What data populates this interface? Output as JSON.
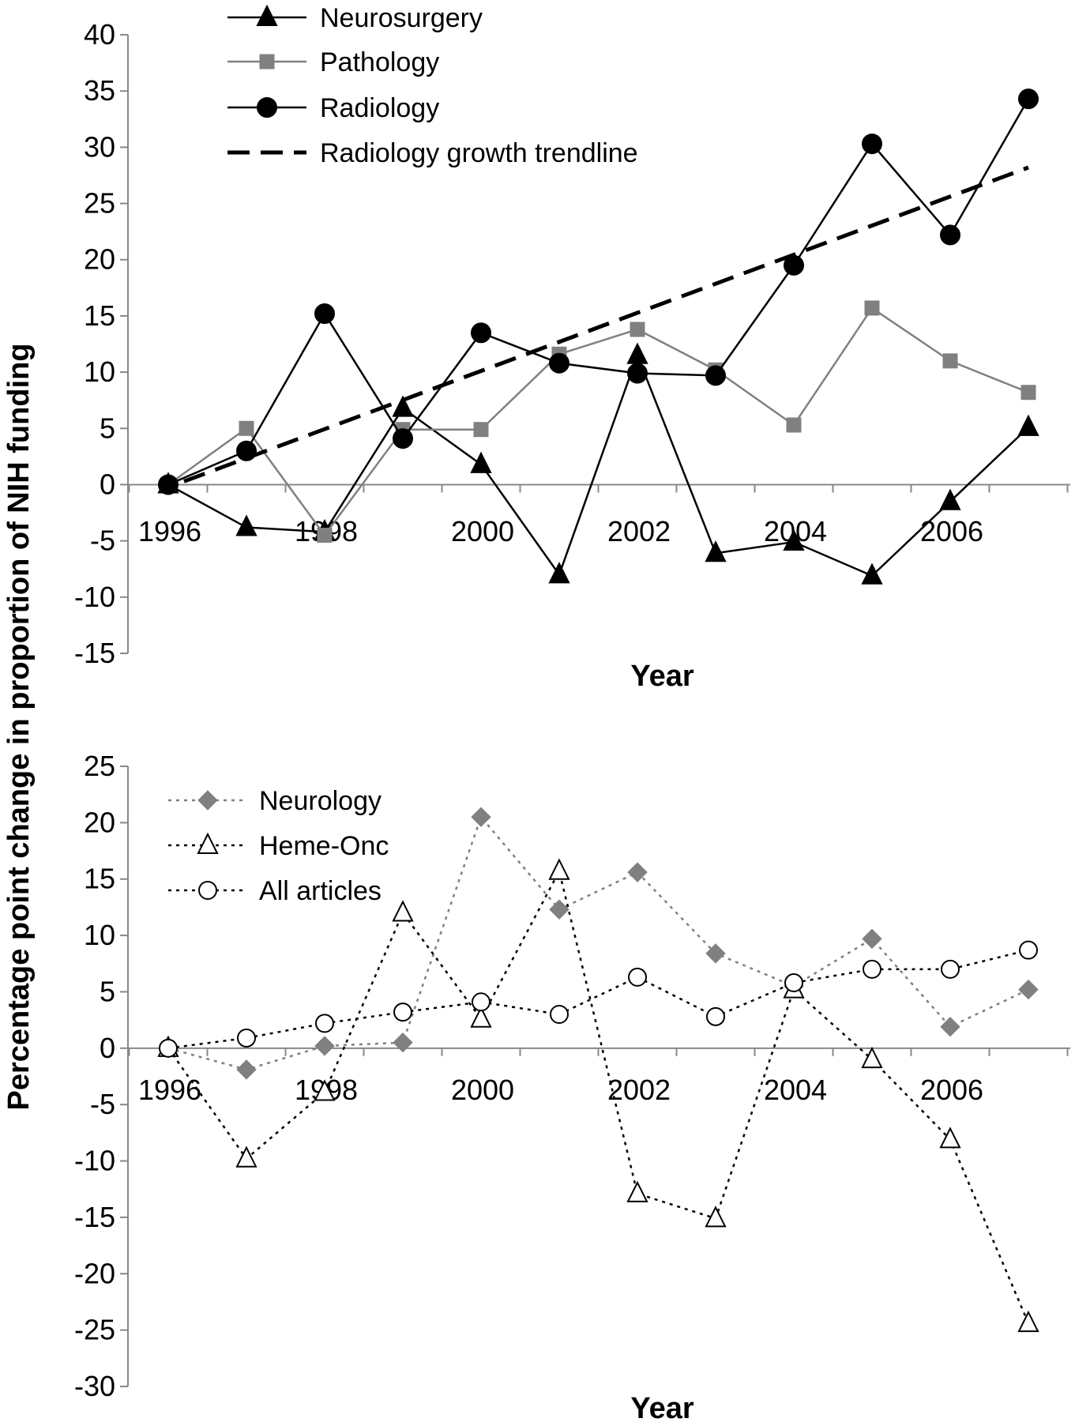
{
  "shared_ylabel": "Percentage point change in proportion of NIH funding",
  "chart_data": [
    {
      "type": "line",
      "xlabel": "Year",
      "ylabel": "Percentage point change in proportion of NIH funding",
      "x": [
        1996,
        1997,
        1998,
        1999,
        2000,
        2001,
        2002,
        2003,
        2004,
        2005,
        2006,
        2007
      ],
      "xticks": [
        "1996",
        "1998",
        "2000",
        "2002",
        "2004",
        "2006"
      ],
      "ylim": [
        -15,
        40
      ],
      "yticks": [
        "40",
        "35",
        "30",
        "25",
        "20",
        "15",
        "10",
        "5",
        "0",
        "-5",
        "-10",
        "-15"
      ],
      "legend_position": "top-left",
      "series": [
        {
          "name": "Neurosurgery",
          "color": "#000000",
          "marker": "triangle-filled",
          "line": "solid",
          "values": [
            0,
            -3.8,
            -4.2,
            6.8,
            1.8,
            -8,
            11.5,
            -6.1,
            -5.1,
            -8.1,
            -1.5,
            5.1
          ]
        },
        {
          "name": "Pathology",
          "color": "#808080",
          "marker": "square-filled",
          "line": "solid",
          "values": [
            0,
            5,
            -4.5,
            4.9,
            4.9,
            11.6,
            13.8,
            10.2,
            5.3,
            15.7,
            11,
            8.2
          ]
        },
        {
          "name": "Radiology",
          "color": "#000000",
          "marker": "circle-filled",
          "line": "solid",
          "values": [
            0,
            3,
            15.2,
            4.1,
            13.5,
            10.8,
            9.9,
            9.7,
            19.5,
            30.3,
            22.2,
            34.3
          ]
        },
        {
          "name": "Radiology growth trendline",
          "color": "#000000",
          "marker": "none",
          "line": "dashed",
          "values": [
            0.5,
            3,
            5.5,
            8.1,
            10.6,
            13.1,
            15.6,
            18.1,
            20.6,
            23.2,
            25.7,
            28.2
          ]
        }
      ]
    },
    {
      "type": "line",
      "xlabel": "Year",
      "ylabel": "Percentage point change in proportion of NIH funding",
      "x": [
        1996,
        1997,
        1998,
        1999,
        2000,
        2001,
        2002,
        2003,
        2004,
        2005,
        2006,
        2007
      ],
      "xticks": [
        "1996",
        "1998",
        "2000",
        "2002",
        "2004",
        "2006"
      ],
      "ylim": [
        -30,
        25
      ],
      "yticks": [
        "25",
        "20",
        "15",
        "10",
        "5",
        "0",
        "-5",
        "-10",
        "-15",
        "-20",
        "-25",
        "-30"
      ],
      "legend_position": "top-left",
      "series": [
        {
          "name": "Neurology",
          "color": "#808080",
          "marker": "diamond-filled",
          "line": "dotted",
          "values": [
            0,
            -1.9,
            0.2,
            0.5,
            20.5,
            12.3,
            15.6,
            8.4,
            5.5,
            9.7,
            1.9,
            5.2
          ]
        },
        {
          "name": "Heme-Onc",
          "color": "#000000",
          "marker": "triangle-open",
          "line": "dotted",
          "values": [
            0,
            -9.8,
            -3.9,
            12,
            2.6,
            15.7,
            -12.9,
            -15.1,
            5.2,
            -1,
            -8.1,
            -24.4
          ]
        },
        {
          "name": "All articles",
          "color": "#000000",
          "marker": "circle-open",
          "line": "dotted",
          "values": [
            0,
            0.9,
            2.2,
            3.2,
            4.1,
            3,
            6.3,
            2.8,
            5.8,
            7,
            7,
            8.7
          ]
        }
      ]
    }
  ]
}
